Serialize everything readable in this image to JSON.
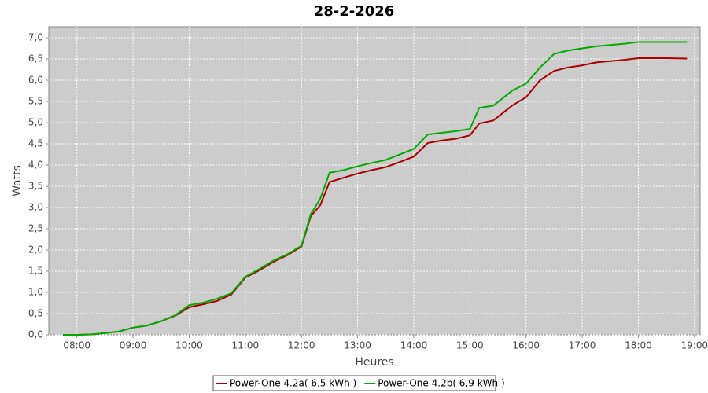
{
  "chart_data": {
    "type": "line",
    "title": "28-2-2026",
    "x_label": "Heures",
    "y_label": "Watts",
    "x": [
      "07:45",
      "08:00",
      "08:15",
      "08:30",
      "08:45",
      "09:00",
      "09:15",
      "09:30",
      "09:45",
      "10:00",
      "10:15",
      "10:30",
      "10:45",
      "11:00",
      "11:15",
      "11:30",
      "11:45",
      "12:00",
      "12:10",
      "12:20",
      "12:30",
      "12:45",
      "13:00",
      "13:15",
      "13:30",
      "13:45",
      "14:00",
      "14:15",
      "14:30",
      "14:45",
      "15:00",
      "15:10",
      "15:25",
      "15:45",
      "16:00",
      "16:15",
      "16:30",
      "16:45",
      "17:00",
      "17:15",
      "17:30",
      "17:45",
      "18:00",
      "18:30",
      "18:52"
    ],
    "series": [
      {
        "name": "Power-One 4.2a( 6,5 kWh )",
        "color": "#aa0000",
        "values": [
          0,
          0,
          0.01,
          0.04,
          0.08,
          0.17,
          0.22,
          0.32,
          0.45,
          0.65,
          0.72,
          0.8,
          0.95,
          1.35,
          1.52,
          1.72,
          1.88,
          2.08,
          2.8,
          3.05,
          3.6,
          3.7,
          3.8,
          3.88,
          3.95,
          4.07,
          4.2,
          4.52,
          4.58,
          4.62,
          4.7,
          4.98,
          5.05,
          5.4,
          5.6,
          6.0,
          6.22,
          6.3,
          6.35,
          6.42,
          6.45,
          6.48,
          6.52,
          6.52,
          6.51
        ]
      },
      {
        "name": "Power-One 4.2b( 6,9 kWh )",
        "color": "#00aa00",
        "values": [
          0,
          0,
          0.01,
          0.04,
          0.08,
          0.17,
          0.22,
          0.32,
          0.46,
          0.7,
          0.76,
          0.85,
          0.98,
          1.37,
          1.55,
          1.75,
          1.9,
          2.1,
          2.85,
          3.2,
          3.82,
          3.88,
          3.97,
          4.05,
          4.12,
          4.25,
          4.38,
          4.72,
          4.76,
          4.8,
          4.85,
          5.35,
          5.4,
          5.75,
          5.92,
          6.3,
          6.62,
          6.7,
          6.75,
          6.8,
          6.83,
          6.86,
          6.9,
          6.9,
          6.9
        ]
      }
    ],
    "xlim": [
      "07:30",
      "19:06"
    ],
    "xticks": [
      "08:00",
      "09:00",
      "10:00",
      "11:00",
      "12:00",
      "13:00",
      "14:00",
      "15:00",
      "16:00",
      "17:00",
      "18:00",
      "19:00"
    ],
    "ylim": [
      0,
      7.26
    ],
    "yticks": [
      {
        "value": 0,
        "label": "0,0"
      },
      {
        "value": 0.5,
        "label": "0,5"
      },
      {
        "value": 1,
        "label": "1,0"
      },
      {
        "value": 1.5,
        "label": "1,5"
      },
      {
        "value": 2,
        "label": "2,0"
      },
      {
        "value": 2.5,
        "label": "2,5"
      },
      {
        "value": 3,
        "label": "3,0"
      },
      {
        "value": 3.5,
        "label": "3,5"
      },
      {
        "value": 4,
        "label": "4,0"
      },
      {
        "value": 4.5,
        "label": "4,5"
      },
      {
        "value": 5,
        "label": "5,0"
      },
      {
        "value": 5.5,
        "label": "5,5"
      },
      {
        "value": 6,
        "label": "6,0"
      },
      {
        "value": 6.5,
        "label": "6,5"
      },
      {
        "value": 7,
        "label": "7,0"
      }
    ],
    "grid": true
  }
}
